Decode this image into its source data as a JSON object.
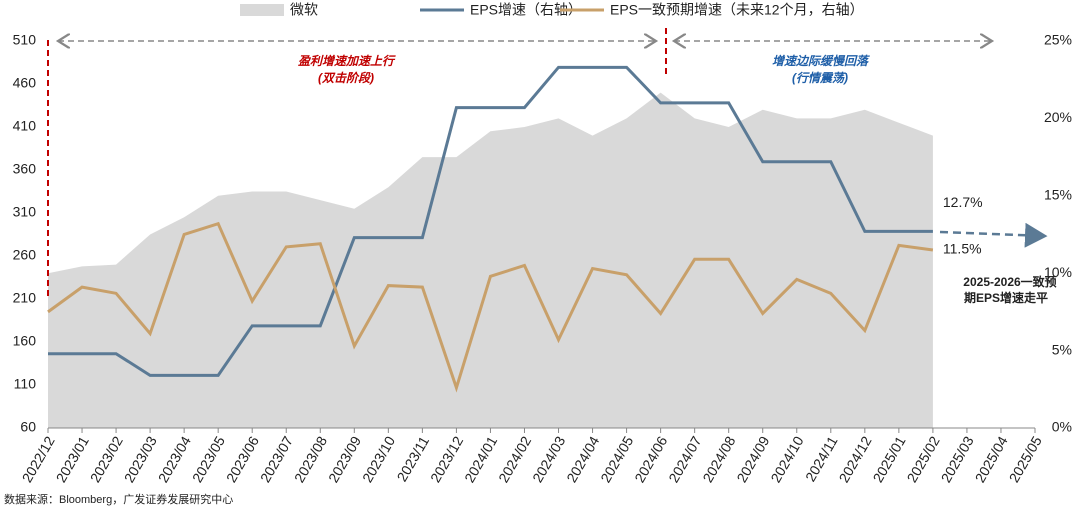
{
  "chart_data": {
    "type": "combo",
    "categories": [
      "2022/12",
      "2023/01",
      "2023/02",
      "2023/03",
      "2023/04",
      "2023/05",
      "2023/06",
      "2023/07",
      "2023/08",
      "2023/09",
      "2023/10",
      "2023/11",
      "2023/12",
      "2024/01",
      "2024/02",
      "2024/03",
      "2024/04",
      "2024/05",
      "2024/06",
      "2024/07",
      "2024/08",
      "2024/09",
      "2024/10",
      "2024/11",
      "2024/12",
      "2025/01",
      "2025/02",
      "2025/03",
      "2025/04",
      "2025/05"
    ],
    "series": [
      {
        "name": "微软",
        "type": "area",
        "color": "#d9d9d9",
        "values": [
          240,
          248,
          250,
          285,
          305,
          330,
          335,
          335,
          325,
          315,
          340,
          375,
          375,
          405,
          410,
          420,
          400,
          420,
          450,
          420,
          410,
          430,
          420,
          420,
          430,
          415,
          400,
          null,
          null,
          null
        ]
      },
      {
        "name": "EPS增速（右轴）",
        "type": "line",
        "axis": "y2",
        "color": "#5b7a95",
        "values": [
          4.8,
          4.8,
          4.8,
          3.4,
          3.4,
          3.4,
          6.6,
          6.6,
          6.6,
          12.3,
          12.3,
          12.3,
          20.7,
          20.7,
          20.7,
          23.3,
          23.3,
          23.3,
          21.0,
          21.0,
          21.0,
          17.2,
          17.2,
          17.2,
          12.7,
          12.7,
          12.7,
          null,
          null,
          null
        ],
        "value_labels": [
          null,
          null,
          null,
          null,
          null,
          null,
          null,
          null,
          null,
          null,
          null,
          null,
          null,
          null,
          null,
          null,
          null,
          null,
          null,
          null,
          null,
          null,
          null,
          null,
          null,
          null,
          "12.7%",
          null,
          null,
          null
        ]
      },
      {
        "name": "EPS一致预期增速（未来12个月，右轴）",
        "type": "line",
        "axis": "y2",
        "color": "#c8a06a",
        "values": [
          7.5,
          9.1,
          8.7,
          6.1,
          12.5,
          13.2,
          8.2,
          11.7,
          11.9,
          5.3,
          9.2,
          9.1,
          2.6,
          9.8,
          10.5,
          5.7,
          10.3,
          9.9,
          7.4,
          10.9,
          10.9,
          7.4,
          9.6,
          8.7,
          6.3,
          11.8,
          11.5,
          null,
          null,
          null
        ],
        "value_labels": [
          null,
          null,
          null,
          null,
          null,
          null,
          null,
          null,
          null,
          null,
          null,
          null,
          null,
          null,
          null,
          null,
          null,
          null,
          null,
          null,
          null,
          null,
          null,
          null,
          null,
          null,
          "11.5%",
          null,
          null,
          null
        ]
      }
    ],
    "ylim": [
      60,
      510
    ],
    "yticks": [
      60,
      110,
      160,
      210,
      260,
      310,
      360,
      410,
      460,
      510
    ],
    "y2lim": [
      0,
      25
    ],
    "y2ticks": [
      {
        "value": 0,
        "label": "0%"
      },
      {
        "value": 5,
        "label": "5%"
      },
      {
        "value": 10,
        "label": "10%"
      },
      {
        "value": 15,
        "label": "15%"
      },
      {
        "value": 20,
        "label": "20%"
      },
      {
        "value": 25,
        "label": "25%"
      }
    ],
    "annotations": [
      "盈利增速加速上行",
      "(双击阶段)",
      "增速边际缓慢回落",
      "(行情震荡)",
      "2025-2026一致预",
      "期EPS增速走平"
    ],
    "source": "数据来源：Bloomberg，广发证券发展研究中心"
  }
}
